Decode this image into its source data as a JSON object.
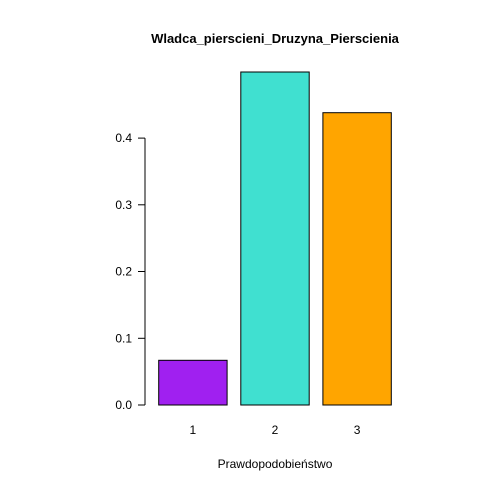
{
  "chart_data": {
    "type": "bar",
    "title": "Wladca_pierscieni_Druzyna_Pierscienia",
    "xlabel": "Prawdopodobieństwo",
    "ylabel": "",
    "categories": [
      "1",
      "2",
      "3"
    ],
    "values": [
      0.067,
      0.499,
      0.438
    ],
    "colors": [
      "#A020F0",
      "#40E0D0",
      "#FFA500"
    ],
    "bar_border": "#000000",
    "ylim": [
      0,
      0.499
    ],
    "yticks": [
      0.0,
      0.1,
      0.2,
      0.3,
      0.4
    ],
    "ytick_labels": [
      "0.0",
      "0.1",
      "0.2",
      "0.3",
      "0.4"
    ],
    "grid": false,
    "legend": "none"
  }
}
